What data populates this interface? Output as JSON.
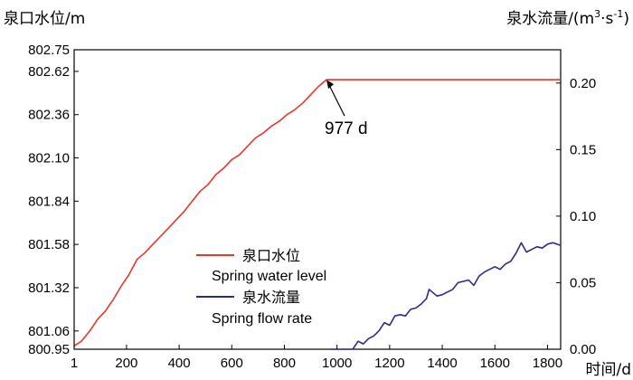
{
  "chart_data": {
    "type": "line",
    "left_axis_title": "泉口水位/m",
    "right_axis_title_main": "泉水流量/(m",
    "right_axis_title_sup1": "3",
    "right_axis_title_mid": "·s",
    "right_axis_title_sup2": "-1",
    "right_axis_title_end": ")",
    "xlabel": "时间/d",
    "xlim": [
      1,
      1850
    ],
    "ylim_left": [
      800.95,
      802.75
    ],
    "ylim_right": [
      0.0,
      0.225
    ],
    "x_ticks": [
      1,
      200,
      400,
      600,
      800,
      1000,
      1200,
      1400,
      1600,
      1800
    ],
    "x_tick_labels": [
      "1",
      "200",
      "400",
      "600",
      "800",
      "1000",
      "1200",
      "1400",
      "1600",
      "1800"
    ],
    "y_left_ticks": [
      800.95,
      801.06,
      801.32,
      801.58,
      801.84,
      802.1,
      802.36,
      802.62,
      802.75
    ],
    "y_left_tick_labels": [
      "800.95",
      "801.06",
      "801.32",
      "801.58",
      "801.84",
      "802.10",
      "802.36",
      "802.62",
      "802.75"
    ],
    "y_right_ticks": [
      0.0,
      0.05,
      0.1,
      0.15,
      0.2
    ],
    "y_right_tick_labels": [
      "0.00",
      "0.05",
      "0.10",
      "0.15",
      "0.20"
    ],
    "annotation": {
      "text": "977 d",
      "x": 960,
      "y": 802.57
    },
    "legend": {
      "position": "center",
      "entries": [
        {
          "label": "泉口水位",
          "sublabel": "Spring water level",
          "color": "#e8362a"
        },
        {
          "label": "泉水流量",
          "sublabel": "Spring flow rate",
          "color": "#2b2b8f"
        }
      ]
    },
    "series": [
      {
        "name": "泉口水位",
        "axis": "left",
        "color": "#e8362a",
        "x": [
          1,
          30,
          60,
          90,
          120,
          150,
          180,
          210,
          240,
          270,
          300,
          330,
          360,
          390,
          420,
          450,
          480,
          510,
          540,
          570,
          600,
          630,
          660,
          690,
          720,
          750,
          780,
          810,
          840,
          870,
          900,
          930,
          960,
          1000,
          1200,
          1400,
          1600,
          1850
        ],
        "values": [
          800.97,
          801.0,
          801.06,
          801.13,
          801.18,
          801.25,
          801.33,
          801.4,
          801.49,
          801.53,
          801.58,
          801.63,
          801.68,
          801.73,
          801.78,
          801.84,
          801.9,
          801.94,
          802.0,
          802.04,
          802.09,
          802.12,
          802.17,
          802.22,
          802.25,
          802.29,
          802.32,
          802.36,
          802.39,
          802.43,
          802.48,
          802.53,
          802.57,
          802.57,
          802.57,
          802.57,
          802.57,
          802.57
        ]
      },
      {
        "name": "泉水流量",
        "axis": "right",
        "color": "#2b2b8f",
        "x": [
          977,
          1060,
          1080,
          1100,
          1120,
          1140,
          1160,
          1180,
          1200,
          1220,
          1240,
          1260,
          1280,
          1300,
          1320,
          1340,
          1350,
          1380,
          1400,
          1440,
          1460,
          1480,
          1500,
          1520,
          1540,
          1560,
          1580,
          1600,
          1620,
          1640,
          1660,
          1680,
          1700,
          1720,
          1740,
          1760,
          1780,
          1800,
          1820,
          1850
        ],
        "values": [
          0.0,
          0.0,
          0.006,
          0.004,
          0.008,
          0.01,
          0.014,
          0.02,
          0.018,
          0.025,
          0.026,
          0.025,
          0.03,
          0.031,
          0.034,
          0.038,
          0.045,
          0.04,
          0.041,
          0.045,
          0.05,
          0.051,
          0.052,
          0.048,
          0.055,
          0.058,
          0.06,
          0.062,
          0.06,
          0.064,
          0.066,
          0.072,
          0.08,
          0.073,
          0.075,
          0.077,
          0.076,
          0.079,
          0.08,
          0.078
        ]
      }
    ]
  }
}
